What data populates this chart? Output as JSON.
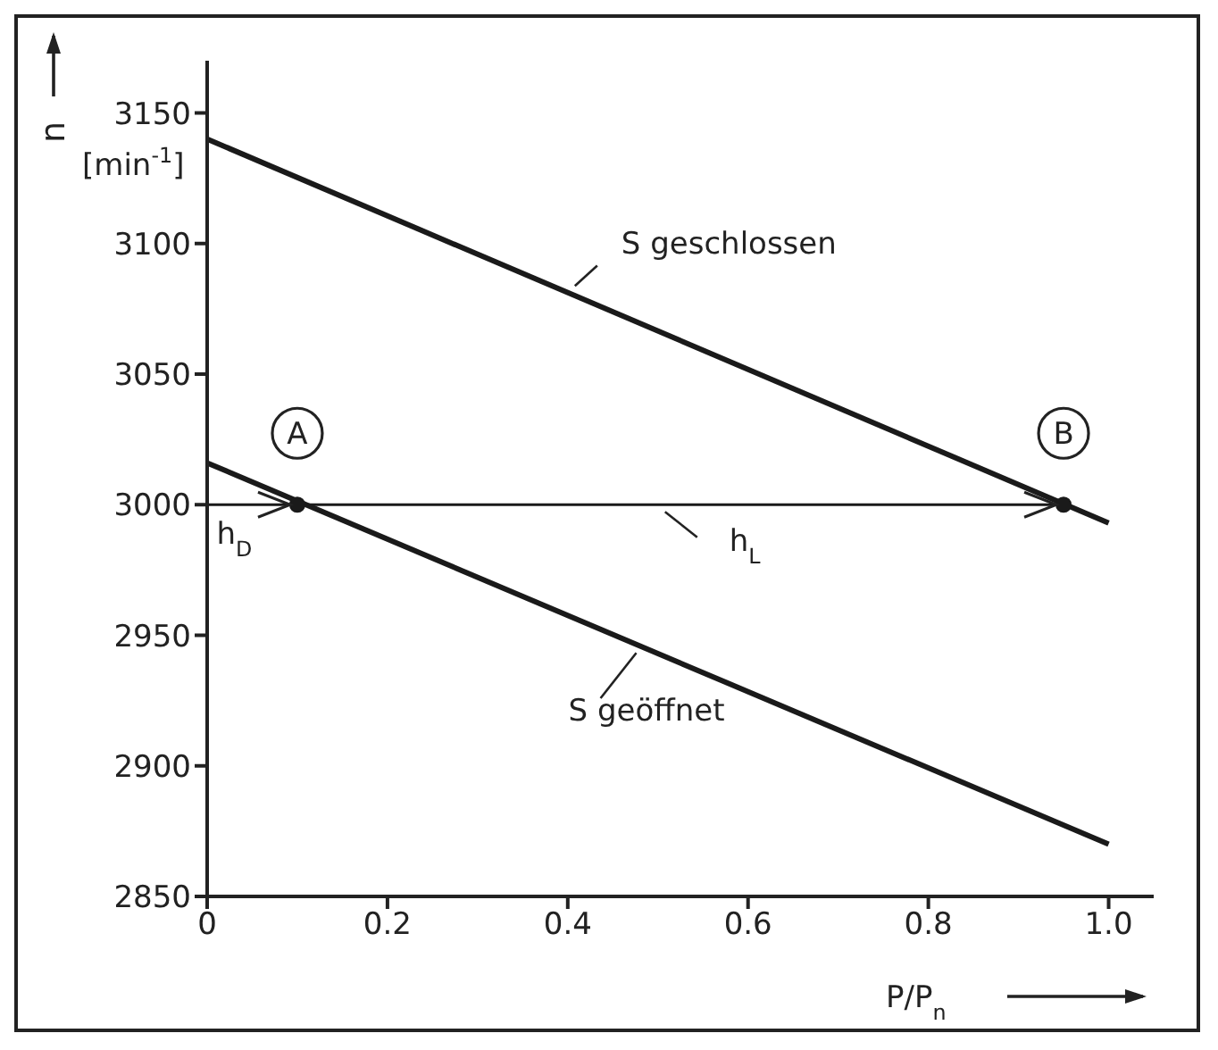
{
  "chart_data": {
    "type": "line",
    "xlabel": "P/P$_{n}$",
    "ylabel": "n [min$^{-1}$]",
    "xlim": [
      0,
      1.05
    ],
    "ylim": [
      2850,
      3170
    ],
    "xticks": [
      0,
      0.2,
      0.4,
      0.6,
      0.8,
      {
        "value": 1,
        "label": "1.0"
      }
    ],
    "yticks": [
      2850,
      2900,
      2950,
      3000,
      3050,
      3100,
      3150
    ],
    "grid": false,
    "legend": false,
    "marker": "none",
    "series": [
      {
        "color": "#1a1a1a",
        "x": [
          0,
          1
        ],
        "values": [
          3140,
          2993
        ]
      },
      {
        "color": "#1a1a1a",
        "x": [
          0,
          1
        ],
        "values": [
          3016,
          2870
        ]
      },
      {
        "color": "#1a1a1a",
        "x": [
          0,
          0.95
        ],
        "values": [
          3000,
          3000
        ]
      },
      {
        "type": "scatter",
        "color": "#1a1a1a",
        "marker": "circle",
        "x": [
          0.1,
          0.95
        ],
        "values": [
          3000,
          3000
        ]
      }
    ],
    "annotations": [
      {
        "text": "S geschlossen",
        "x": 0.4,
        "y": 3081
      },
      {
        "text": "S geöffnet",
        "x": 0.48,
        "y": 2946
      },
      {
        "text": "A",
        "x": 0.1,
        "y": 3000
      },
      {
        "text": "B",
        "x": 0.95,
        "y": 3000
      },
      {
        "text": "h$_{D}$",
        "x": 0.05,
        "y": 3000
      },
      {
        "text": "h$_{L}$",
        "x": 0.5,
        "y": 3000
      }
    ]
  }
}
